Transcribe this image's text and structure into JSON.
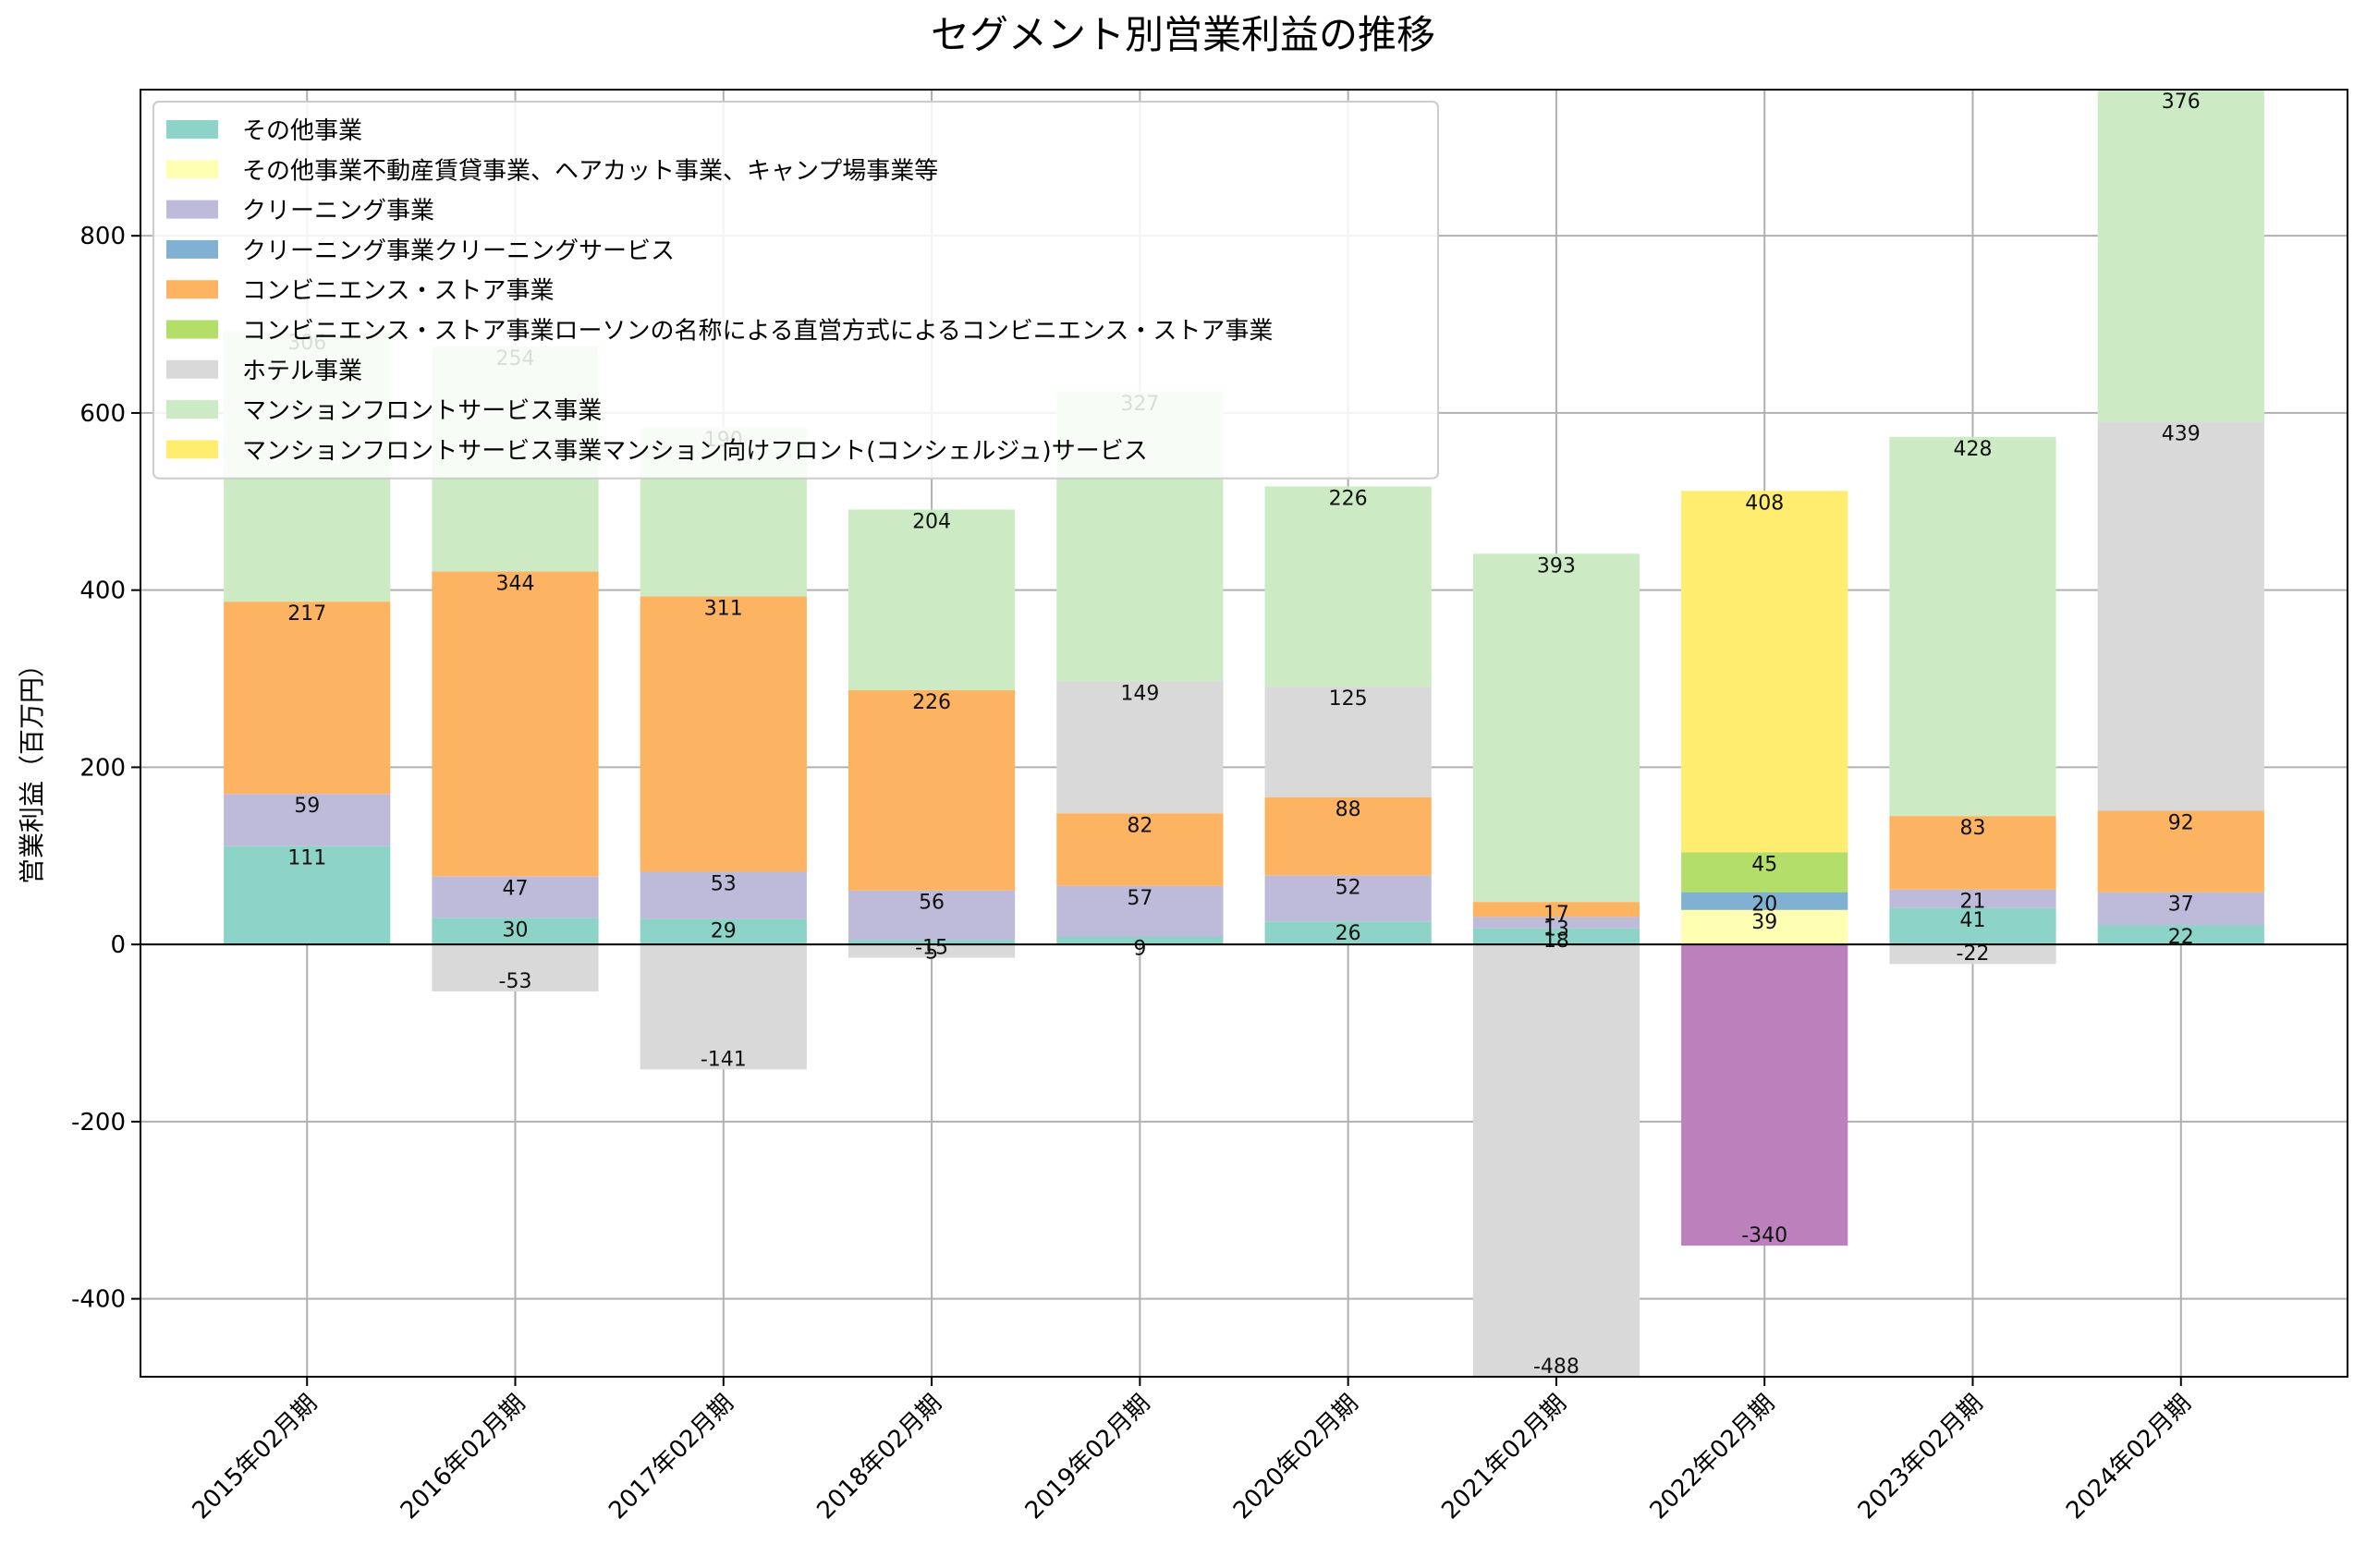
{
  "chart_data": {
    "type": "bar",
    "stacked": true,
    "title": "セグメント別営業利益の推移",
    "ylabel": "営業利益（百万円）",
    "xlabel": "",
    "ylim": [
      -488,
      965
    ],
    "yticks": [
      -400,
      -200,
      0,
      200,
      400,
      600,
      800
    ],
    "grid": true,
    "legend_position": "top-left",
    "categories": [
      "2015年02月期",
      "2016年02月期",
      "2017年02月期",
      "2018年02月期",
      "2019年02月期",
      "2020年02月期",
      "2021年02月期",
      "2022年02月期",
      "2023年02月期",
      "2024年02月期"
    ],
    "series": [
      {
        "name": "その他事業",
        "color": "#8dd3c7",
        "values": [
          111,
          30,
          29,
          5,
          9,
          26,
          18,
          0,
          41,
          22
        ]
      },
      {
        "name": "その他事業不動産賃貸事業、ヘアカット事業、キャンプ場事業等",
        "color": "#ffffb3",
        "values": [
          0,
          0,
          0,
          0,
          0,
          0,
          0,
          39,
          0,
          0
        ]
      },
      {
        "name": "クリーニング事業",
        "color": "#bebada",
        "values": [
          59,
          47,
          53,
          56,
          57,
          52,
          13,
          0,
          21,
          37
        ]
      },
      {
        "name": "クリーニング事業クリーニングサービス",
        "color": "#80b1d3",
        "values": [
          0,
          0,
          0,
          0,
          0,
          0,
          0,
          20,
          0,
          0
        ]
      },
      {
        "name": "コンビニエンス・ストア事業",
        "color": "#fdb462",
        "values": [
          217,
          344,
          311,
          226,
          82,
          88,
          17,
          0,
          83,
          92
        ]
      },
      {
        "name": "コンビニエンス・ストア事業ローソンの名称による直営方式によるコンビニエンス・ストア事業",
        "color": "#b3de69",
        "values": [
          0,
          0,
          0,
          0,
          0,
          0,
          0,
          45,
          0,
          0
        ]
      },
      {
        "name": "ホテル事業",
        "color": "#d9d9d9",
        "values": [
          0,
          -53,
          -141,
          -15,
          149,
          125,
          -488,
          0,
          -22,
          439
        ]
      },
      {
        "name": "マンションフロントサービス事業",
        "color": "#ccebc5",
        "values": [
          306,
          254,
          190,
          204,
          327,
          226,
          393,
          0,
          428,
          376
        ]
      },
      {
        "name": "マンションフロントサービス事業マンション向けフロント(コンシェルジュ)サービス",
        "color": "#ffed6f",
        "values": [
          0,
          0,
          0,
          0,
          0,
          0,
          0,
          408,
          0,
          0
        ]
      },
      {
        "name": "",
        "color": "#bc80bd",
        "values": [
          0,
          0,
          0,
          0,
          0,
          0,
          0,
          -340,
          0,
          0
        ]
      }
    ]
  }
}
